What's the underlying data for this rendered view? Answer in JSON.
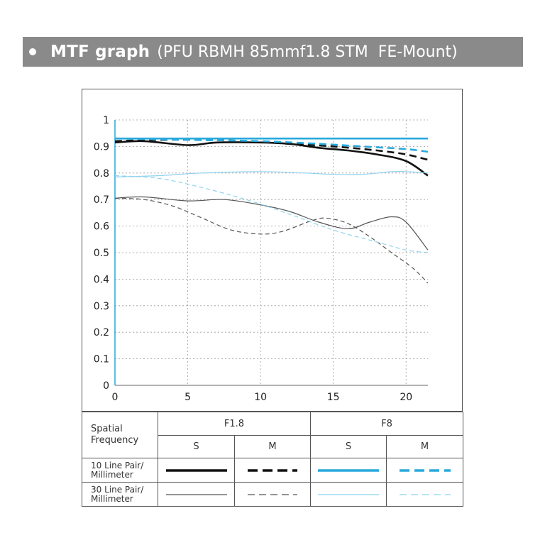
{
  "header": {
    "title_main": "MTF graph",
    "title_sub": "(PFU RBMH 85mmf1.8 STM  FE-Mount)"
  },
  "legend": {
    "spatial_frequency_label": "Spatial\nFrequency",
    "apertures": [
      "F1.8",
      "F8"
    ],
    "s_label": "S",
    "m_label": "M",
    "row_10": "10 Line Pair/\nMillimeter",
    "row_30": "30 Line Pair/\nMillimeter"
  },
  "colors": {
    "black_series": "#111111",
    "dark_gray_series": "#555555",
    "blue_10": "#29a9dc",
    "blue_30": "#8fd2ee",
    "grid": "#9a9a9a",
    "y_axis": "#29a9dc"
  },
  "chart_data": {
    "type": "line",
    "title": "MTF graph",
    "xlabel": "",
    "ylabel": "",
    "xlim": [
      0,
      21.5
    ],
    "ylim": [
      0,
      1
    ],
    "x_ticks": [
      0,
      5,
      10,
      15,
      20
    ],
    "y_ticks": [
      0,
      0.1,
      0.2,
      0.3,
      0.4,
      0.5,
      0.6,
      0.7,
      0.8,
      0.9,
      1
    ],
    "y_tick_labels": [
      "0",
      "0.1",
      "0.2",
      "0.3",
      "0.4",
      "0.5",
      "0.6",
      "0.7",
      "0.8",
      "0.9",
      "1"
    ],
    "x_tick_labels": [
      "0",
      "5",
      "10",
      "15",
      "20"
    ],
    "grid": true,
    "series": [
      {
        "name": "F1.8 S 10 lp/mm",
        "aperture": "F1.8",
        "direction": "S",
        "frequency": 10,
        "style": "solid",
        "color": "#111111",
        "weight": "thick",
        "points": [
          [
            0,
            0.915
          ],
          [
            2,
            0.92
          ],
          [
            5,
            0.905
          ],
          [
            7,
            0.915
          ],
          [
            10,
            0.915
          ],
          [
            12,
            0.91
          ],
          [
            14,
            0.895
          ],
          [
            16,
            0.885
          ],
          [
            18,
            0.87
          ],
          [
            20,
            0.845
          ],
          [
            21.5,
            0.79
          ]
        ]
      },
      {
        "name": "F1.8 M 10 lp/mm",
        "aperture": "F1.8",
        "direction": "M",
        "frequency": 10,
        "style": "dashed",
        "color": "#111111",
        "weight": "thick",
        "points": [
          [
            0,
            0.92
          ],
          [
            3,
            0.925
          ],
          [
            6,
            0.925
          ],
          [
            9,
            0.92
          ],
          [
            12,
            0.91
          ],
          [
            15,
            0.9
          ],
          [
            18,
            0.885
          ],
          [
            20,
            0.87
          ],
          [
            21.5,
            0.85
          ]
        ]
      },
      {
        "name": "F8 S 10 lp/mm",
        "aperture": "F8",
        "direction": "S",
        "frequency": 10,
        "style": "solid",
        "color": "#29a9dc",
        "weight": "thick",
        "points": [
          [
            0,
            0.93
          ],
          [
            5,
            0.93
          ],
          [
            10,
            0.93
          ],
          [
            15,
            0.93
          ],
          [
            20,
            0.93
          ],
          [
            21.5,
            0.93
          ]
        ]
      },
      {
        "name": "F8 M 10 lp/mm",
        "aperture": "F8",
        "direction": "M",
        "frequency": 10,
        "style": "dashed",
        "color": "#29a9dc",
        "weight": "thick",
        "points": [
          [
            0,
            0.93
          ],
          [
            5,
            0.925
          ],
          [
            10,
            0.92
          ],
          [
            14,
            0.91
          ],
          [
            17,
            0.9
          ],
          [
            20,
            0.89
          ],
          [
            21.5,
            0.88
          ]
        ]
      },
      {
        "name": "F1.8 S 30 lp/mm",
        "aperture": "F1.8",
        "direction": "S",
        "frequency": 30,
        "style": "solid",
        "color": "#555555",
        "weight": "thin",
        "points": [
          [
            0,
            0.705
          ],
          [
            2,
            0.71
          ],
          [
            5,
            0.695
          ],
          [
            7.5,
            0.7
          ],
          [
            10,
            0.68
          ],
          [
            12,
            0.655
          ],
          [
            14,
            0.615
          ],
          [
            16,
            0.59
          ],
          [
            17.5,
            0.615
          ],
          [
            19,
            0.635
          ],
          [
            20,
            0.615
          ],
          [
            21.5,
            0.51
          ]
        ]
      },
      {
        "name": "F1.8 M 30 lp/mm",
        "aperture": "F1.8",
        "direction": "M",
        "frequency": 30,
        "style": "dashed",
        "color": "#555555",
        "weight": "thin",
        "points": [
          [
            0,
            0.705
          ],
          [
            2,
            0.7
          ],
          [
            4,
            0.675
          ],
          [
            6,
            0.63
          ],
          [
            8,
            0.585
          ],
          [
            10,
            0.57
          ],
          [
            11.5,
            0.58
          ],
          [
            13.5,
            0.62
          ],
          [
            14.5,
            0.63
          ],
          [
            16,
            0.61
          ],
          [
            17.5,
            0.56
          ],
          [
            19,
            0.5
          ],
          [
            20.5,
            0.44
          ],
          [
            21.5,
            0.385
          ]
        ]
      },
      {
        "name": "F8 S 30 lp/mm",
        "aperture": "F8",
        "direction": "S",
        "frequency": 30,
        "style": "solid",
        "color": "#8fd2ee",
        "weight": "thin",
        "points": [
          [
            0,
            0.785
          ],
          [
            3,
            0.79
          ],
          [
            6,
            0.8
          ],
          [
            10,
            0.805
          ],
          [
            13,
            0.8
          ],
          [
            15,
            0.795
          ],
          [
            17,
            0.795
          ],
          [
            19,
            0.805
          ],
          [
            20,
            0.805
          ],
          [
            21.5,
            0.8
          ]
        ]
      },
      {
        "name": "F8 M 30 lp/mm",
        "aperture": "F8",
        "direction": "M",
        "frequency": 30,
        "style": "dashed",
        "color": "#8fd2ee",
        "weight": "thin",
        "points": [
          [
            0,
            0.79
          ],
          [
            3,
            0.78
          ],
          [
            6,
            0.745
          ],
          [
            9,
            0.7
          ],
          [
            12,
            0.645
          ],
          [
            15,
            0.585
          ],
          [
            18,
            0.54
          ],
          [
            20,
            0.51
          ],
          [
            21.5,
            0.5
          ]
        ]
      }
    ]
  }
}
